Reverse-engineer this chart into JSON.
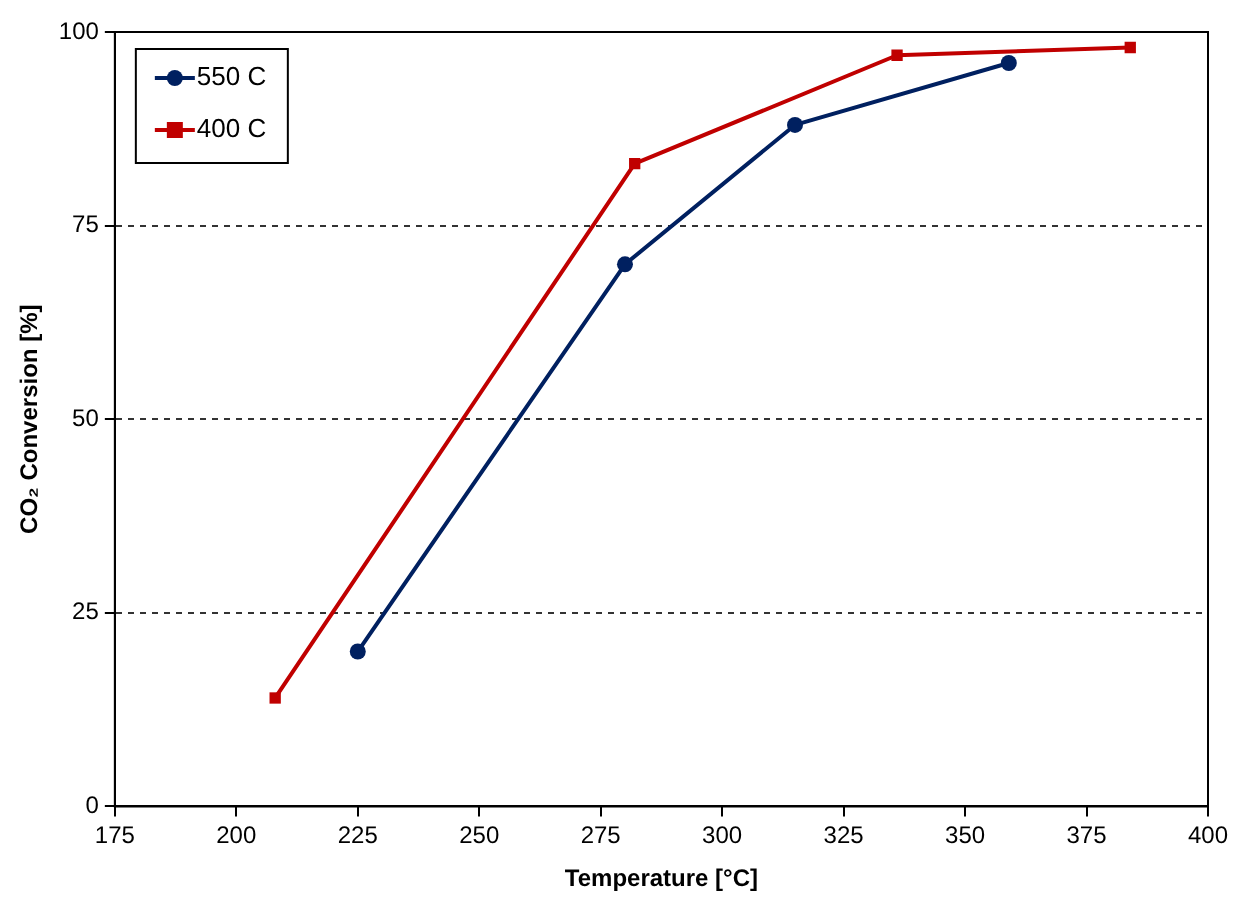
{
  "chart_data": {
    "type": "line",
    "xlabel": "Temperature [°C]",
    "ylabel": "CO₂ Conversion [%]",
    "xlim": [
      175,
      400
    ],
    "xticks": [
      175,
      200,
      225,
      250,
      275,
      300,
      325,
      350,
      375,
      400
    ],
    "ylim": [
      0,
      100
    ],
    "yticks": [
      0,
      25,
      50,
      75,
      100
    ],
    "grid": "y",
    "legend": "top left",
    "line_style": "solid",
    "series": [
      {
        "name": "550 C",
        "color": "#002060",
        "marker": "circle",
        "x": [
          225,
          280,
          315,
          359
        ],
        "values": [
          20,
          70,
          88,
          96
        ]
      },
      {
        "name": "400 C",
        "color": "#c00000",
        "marker": "square",
        "x": [
          208,
          282,
          336,
          384
        ],
        "values": [
          14,
          83,
          97,
          98
        ]
      }
    ]
  }
}
